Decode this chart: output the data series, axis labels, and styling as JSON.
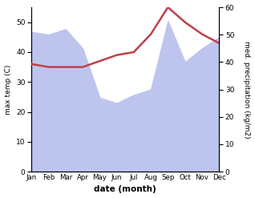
{
  "months": [
    "Jan",
    "Feb",
    "Mar",
    "Apr",
    "May",
    "Jun",
    "Jul",
    "Aug",
    "Sep",
    "Oct",
    "Nov",
    "Dec"
  ],
  "max_temp": [
    36,
    35,
    35,
    35,
    37,
    39,
    40,
    46,
    55,
    50,
    46,
    43
  ],
  "precipitation": [
    51,
    50,
    52,
    45,
    27,
    25,
    28,
    30,
    55,
    40,
    45,
    49
  ],
  "temp_ylim": [
    0,
    55
  ],
  "precip_ylim": [
    0,
    60
  ],
  "temp_color": "#c0404a",
  "precip_fill_color": "#bdc5ee",
  "xlabel": "date (month)",
  "ylabel_left": "max temp (C)",
  "ylabel_right": "med. precipitation (kg/m2)",
  "bg_color": "#ffffff",
  "temp_yticks": [
    0,
    10,
    20,
    30,
    40,
    50
  ],
  "precip_yticks": [
    0,
    10,
    20,
    30,
    40,
    50,
    60
  ]
}
